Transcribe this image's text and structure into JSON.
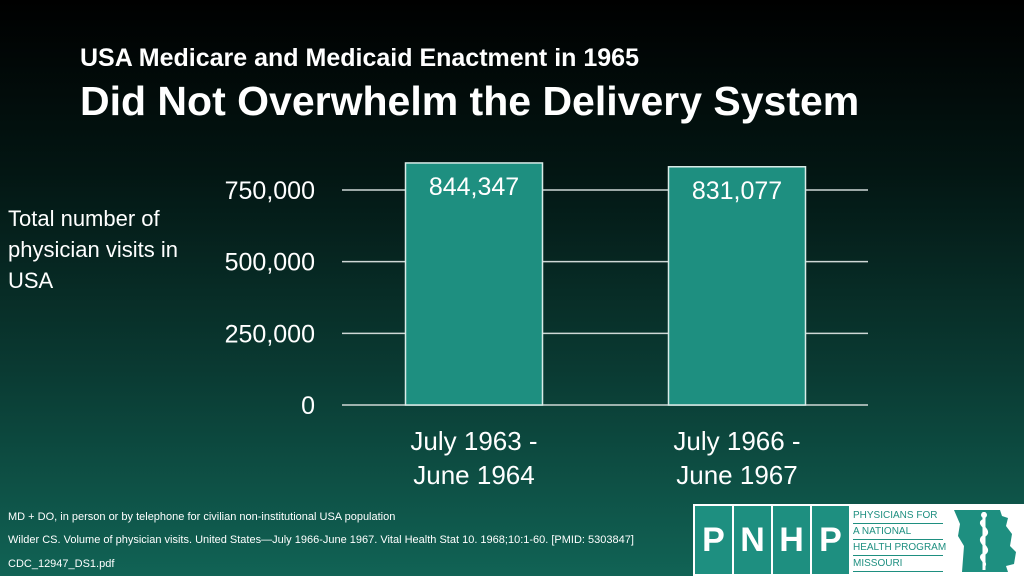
{
  "slide": {
    "title_line1": "USA Medicare and Medicaid Enactment in 1965",
    "title_line2": "Did Not Overwhelm the Delivery System",
    "ylabel": "Total number of physician visits in USA"
  },
  "chart_data": {
    "type": "bar",
    "title": "Did Not Overwhelm the Delivery System",
    "ylabel": "Total number of physician visits in USA",
    "xlabel": "",
    "ylim": [
      0,
      750000
    ],
    "yticks": [
      {
        "value": 0,
        "label": "0"
      },
      {
        "value": 250000,
        "label": "250,000"
      },
      {
        "value": 500000,
        "label": "500,000"
      },
      {
        "value": 750000,
        "label": "750,000"
      }
    ],
    "grid": true,
    "categories": [
      {
        "line1": "July 1963 -",
        "line2": "June 1964"
      },
      {
        "line1": "July 1966 -",
        "line2": "June 1967"
      }
    ],
    "values": [
      844347,
      831077
    ],
    "value_labels": [
      "844,347",
      "831,077"
    ],
    "colors": {
      "bar": "#1e8f80",
      "bar_border": "#d9ece8",
      "grid": "#cfd8d6",
      "text": "#ffffff"
    }
  },
  "footnotes": [
    "MD + DO, in person or by telephone for civilian non-institutional USA population",
    "Wilder CS. Volume of physician visits. United States—July 1966-June 1967. Vital Health Stat 10. 1968;10:1-60. [PMID: 5303847]",
    "CDC_12947_DS1.pdf"
  ],
  "logo": {
    "letters": [
      "P",
      "N",
      "H",
      "P"
    ],
    "text_lines": [
      "PHYSICIANS FOR",
      "A NATIONAL",
      "HEALTH PROGRAM",
      "MISSOURI"
    ],
    "emblem_icon": "missouri-caduceus-icon",
    "color": "#1e8f80"
  }
}
